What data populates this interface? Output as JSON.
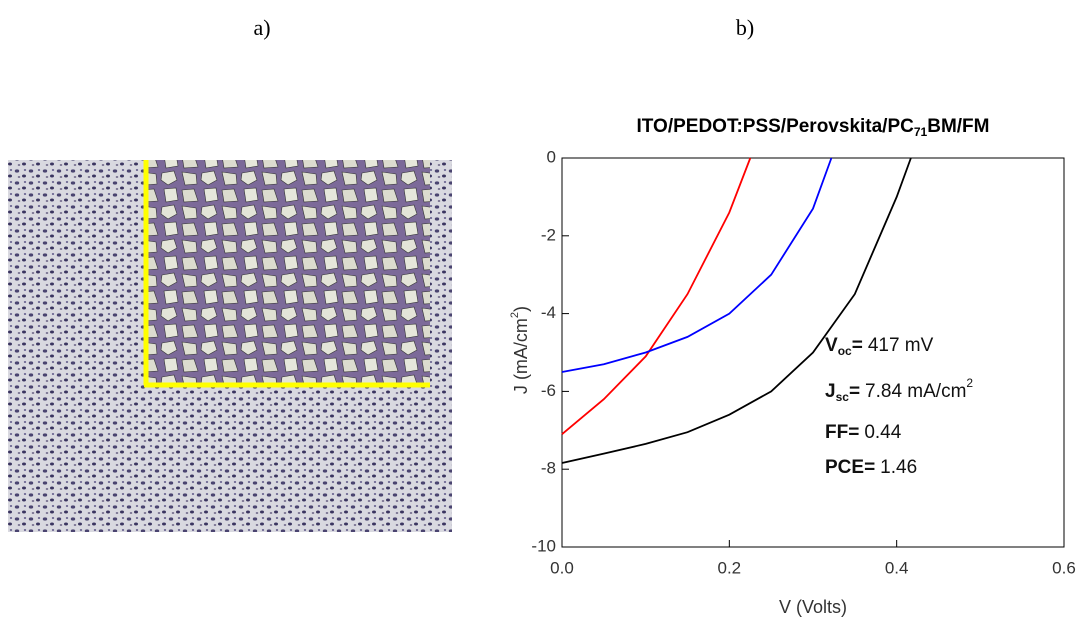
{
  "panels": {
    "a": "a)",
    "b": "b)"
  },
  "chart_data": {
    "type": "line",
    "title": {
      "before": "ITO/PEDOT:PSS/Perovskita/PC",
      "sub": "71",
      "after": "BM/FM"
    },
    "x_label": "V (Volts)",
    "y_label": {
      "before": "J (mA/cm",
      "sup": "2",
      "after": ")"
    },
    "xlim": [
      0,
      0.6
    ],
    "ylim": [
      -10,
      0
    ],
    "xticks": [
      {
        "value": 0,
        "label": "0.0"
      },
      0.2,
      0.4,
      0.6
    ],
    "yticks": [
      0,
      -2,
      -4,
      -6,
      -8,
      -10
    ],
    "series": [
      {
        "color": "#ff0000",
        "x": [
          0,
          0.05,
          0.1,
          0.15,
          0.2,
          0.225
        ],
        "values": [
          -7.1,
          -6.2,
          -5.1,
          -3.5,
          -1.4,
          0
        ]
      },
      {
        "color": "#0000ff",
        "x": [
          0,
          0.05,
          0.1,
          0.15,
          0.2,
          0.25,
          0.3,
          0.322
        ],
        "values": [
          -5.5,
          -5.3,
          -5.0,
          -4.6,
          -4.0,
          -3.0,
          -1.3,
          0
        ]
      },
      {
        "color": "#000000",
        "x": [
          0,
          0.05,
          0.1,
          0.15,
          0.2,
          0.25,
          0.3,
          0.35,
          0.4,
          0.417
        ],
        "values": [
          -7.84,
          -7.6,
          -7.35,
          -7.05,
          -6.6,
          -6.0,
          -5.0,
          -3.5,
          -1.0,
          0
        ]
      }
    ],
    "annotations": [
      {
        "label": "V",
        "sub": "oc",
        "eq": "=",
        "value": "417 mV"
      },
      {
        "label": "J",
        "sub": "sc",
        "eq": "=",
        "value": "7.84 mA/cm",
        "sup": "2"
      },
      {
        "label": "FF=",
        "value": "0.44"
      },
      {
        "label": "PCE=",
        "value": "1.46"
      }
    ]
  }
}
